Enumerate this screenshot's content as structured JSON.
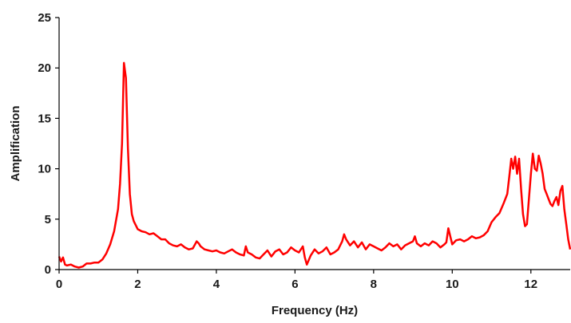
{
  "chart_data": {
    "type": "line",
    "title": "",
    "xlabel": "Frequency (Hz)",
    "ylabel": "Amplification",
    "xlim": [
      0,
      13
    ],
    "ylim": [
      0,
      25
    ],
    "x_ticks": [
      0,
      2,
      4,
      6,
      8,
      10,
      12
    ],
    "y_ticks": [
      0,
      5,
      10,
      15,
      20,
      25
    ],
    "grid": false,
    "legend": "none",
    "line_color": "#ff0000",
    "series": [
      {
        "x": [
          0,
          0.05,
          0.1,
          0.15,
          0.2,
          0.3,
          0.4,
          0.5,
          0.6,
          0.7,
          0.8,
          0.9,
          1.0,
          1.1,
          1.2,
          1.3,
          1.4,
          1.5,
          1.55,
          1.6,
          1.65,
          1.7,
          1.75,
          1.8,
          1.85,
          1.9,
          2.0,
          2.1,
          2.2,
          2.3,
          2.4,
          2.5,
          2.6,
          2.7,
          2.8,
          2.9,
          3.0,
          3.1,
          3.2,
          3.3,
          3.4,
          3.5,
          3.55,
          3.6,
          3.7,
          3.8,
          3.9,
          4.0,
          4.1,
          4.2,
          4.3,
          4.4,
          4.5,
          4.6,
          4.7,
          4.75,
          4.8,
          4.9,
          5.0,
          5.1,
          5.2,
          5.3,
          5.4,
          5.5,
          5.6,
          5.7,
          5.8,
          5.9,
          6.0,
          6.1,
          6.2,
          6.25,
          6.3,
          6.4,
          6.5,
          6.6,
          6.7,
          6.8,
          6.9,
          7.0,
          7.1,
          7.2,
          7.25,
          7.3,
          7.4,
          7.5,
          7.6,
          7.7,
          7.8,
          7.9,
          8.0,
          8.1,
          8.2,
          8.3,
          8.4,
          8.5,
          8.6,
          8.7,
          8.8,
          8.9,
          9.0,
          9.05,
          9.1,
          9.2,
          9.3,
          9.4,
          9.5,
          9.6,
          9.7,
          9.8,
          9.85,
          9.9,
          10.0,
          10.1,
          10.2,
          10.3,
          10.4,
          10.5,
          10.6,
          10.7,
          10.8,
          10.9,
          11.0,
          11.1,
          11.2,
          11.3,
          11.4,
          11.45,
          11.5,
          11.55,
          11.6,
          11.65,
          11.7,
          11.75,
          11.8,
          11.85,
          11.9,
          11.95,
          12.0,
          12.05,
          12.1,
          12.15,
          12.2,
          12.25,
          12.3,
          12.35,
          12.4,
          12.45,
          12.5,
          12.55,
          12.6,
          12.65,
          12.7,
          12.75,
          12.8,
          12.85,
          12.9,
          12.95,
          13.0
        ],
        "y": [
          1.3,
          0.8,
          1.2,
          0.5,
          0.4,
          0.5,
          0.3,
          0.2,
          0.3,
          0.6,
          0.6,
          0.7,
          0.7,
          1.0,
          1.6,
          2.5,
          3.8,
          6.0,
          8.5,
          12.5,
          20.5,
          19.0,
          12.0,
          7.5,
          5.5,
          4.8,
          4.0,
          3.8,
          3.7,
          3.5,
          3.6,
          3.3,
          3.0,
          3.0,
          2.6,
          2.4,
          2.3,
          2.5,
          2.2,
          2.0,
          2.1,
          2.8,
          2.6,
          2.3,
          2.0,
          1.9,
          1.8,
          1.9,
          1.7,
          1.6,
          1.8,
          2.0,
          1.7,
          1.5,
          1.4,
          2.3,
          1.7,
          1.5,
          1.2,
          1.1,
          1.5,
          1.9,
          1.3,
          1.8,
          2.0,
          1.5,
          1.7,
          2.2,
          1.9,
          1.7,
          2.3,
          1.2,
          0.5,
          1.4,
          2.0,
          1.6,
          1.8,
          2.2,
          1.5,
          1.7,
          2.0,
          2.8,
          3.5,
          3.0,
          2.4,
          2.8,
          2.2,
          2.7,
          2.0,
          2.5,
          2.3,
          2.1,
          1.9,
          2.2,
          2.6,
          2.3,
          2.5,
          2.0,
          2.4,
          2.6,
          2.8,
          3.3,
          2.6,
          2.3,
          2.6,
          2.4,
          2.8,
          2.6,
          2.2,
          2.5,
          2.7,
          4.1,
          2.5,
          2.9,
          3.0,
          2.8,
          3.0,
          3.3,
          3.1,
          3.2,
          3.4,
          3.8,
          4.7,
          5.2,
          5.6,
          6.5,
          7.5,
          9.2,
          11.0,
          10.0,
          11.2,
          9.5,
          11.0,
          8.0,
          5.5,
          4.3,
          4.5,
          7.0,
          9.5,
          11.5,
          10.0,
          9.8,
          11.3,
          10.5,
          9.5,
          8.0,
          7.5,
          7.0,
          6.5,
          6.3,
          6.8,
          7.2,
          6.4,
          7.8,
          8.3,
          6.0,
          4.5,
          3.0,
          2.0
        ]
      }
    ]
  }
}
